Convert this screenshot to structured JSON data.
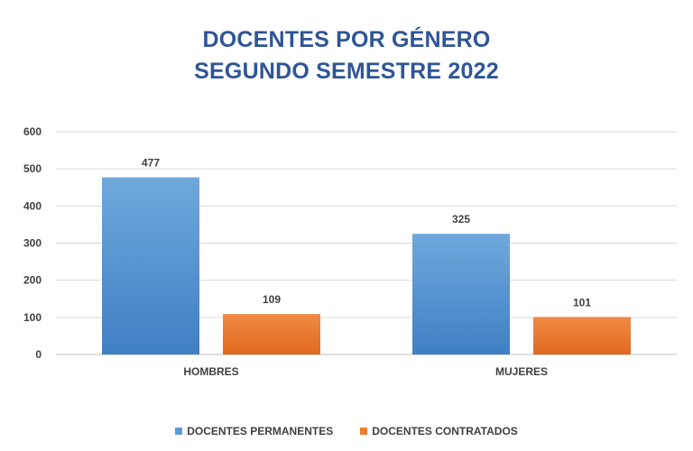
{
  "chart_data": {
    "type": "bar",
    "title": [
      "DOCENTES POR GÉNERO",
      "SEGUNDO SEMESTRE 2022"
    ],
    "categories": [
      "HOMBRES",
      "MUJERES"
    ],
    "series": [
      {
        "name": "DOCENTES PERMANENTES",
        "values": [
          477,
          325
        ],
        "color": "#5B9BD5"
      },
      {
        "name": "DOCENTES CONTRATADOS",
        "values": [
          109,
          101
        ],
        "color": "#ED7D31"
      }
    ],
    "data_labels": [
      [
        "477",
        "325"
      ],
      [
        "109",
        "101"
      ]
    ],
    "ylim": [
      0,
      600
    ],
    "yticks": [
      0,
      100,
      200,
      300,
      400,
      500,
      600
    ],
    "ytick_labels": [
      "0",
      "100",
      "200",
      "300",
      "400",
      "500",
      "600"
    ],
    "grid": true,
    "legend_position": "bottom",
    "title_color": "#2F5597"
  }
}
